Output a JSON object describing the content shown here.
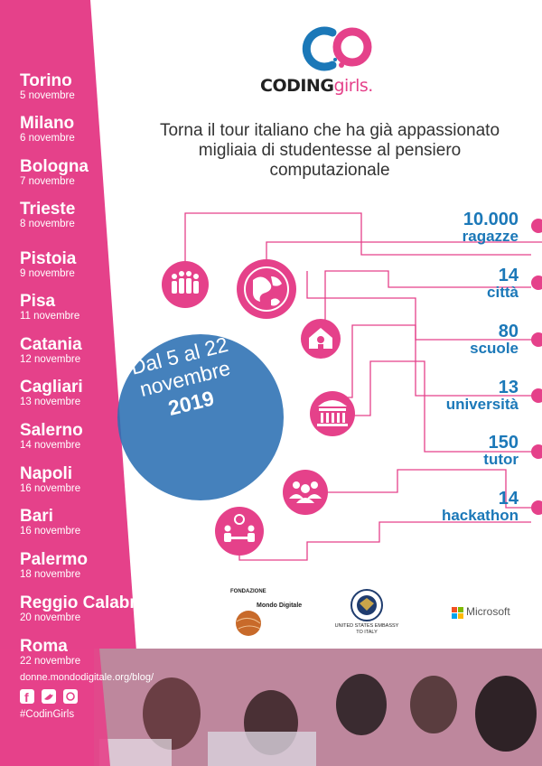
{
  "colors": {
    "pink": "#e5418a",
    "blue": "#1b78b8",
    "photo_pink": "#d46c94"
  },
  "logo": {
    "coding": "CODING",
    "girls": "girls."
  },
  "headline": "Torna il tour italiano che ha già appassionato migliaia di studentesse al pensiero computazionale",
  "cities": [
    {
      "name": "Torino",
      "date": "5 novembre"
    },
    {
      "name": "Milano",
      "date": "6 novembre"
    },
    {
      "name": "Bologna",
      "date": "7 novembre"
    },
    {
      "name": "Trieste",
      "date": "8 novembre"
    },
    {
      "name": "Pistoia",
      "date": "9 novembre"
    },
    {
      "name": "Pisa",
      "date": "11 novembre"
    },
    {
      "name": "Catania",
      "date": "12 novembre"
    },
    {
      "name": "Cagliari",
      "date": "13 novembre"
    },
    {
      "name": "Salerno",
      "date": "14 novembre"
    },
    {
      "name": "Napoli",
      "date": "16 novembre"
    },
    {
      "name": "Bari",
      "date": "16 novembre"
    },
    {
      "name": "Palermo",
      "date": "18 novembre"
    },
    {
      "name": "Reggio Calabria",
      "date": "20 novembre"
    },
    {
      "name": "Roma",
      "date": "22 novembre"
    }
  ],
  "stats": [
    {
      "num": "10.000",
      "label": "ragazze"
    },
    {
      "num": "14",
      "label": "città"
    },
    {
      "num": "80",
      "label": "scuole"
    },
    {
      "num": "13",
      "label": "università"
    },
    {
      "num": "150",
      "label": "tutor"
    },
    {
      "num": "14",
      "label": "hackathon"
    }
  ],
  "date_circle": {
    "line1": "Dal 5 al 22",
    "line2": "novembre",
    "year": "2019"
  },
  "icons": [
    "people-icon",
    "globe-icon",
    "school-icon",
    "university-icon",
    "group-icon",
    "tutor-icon"
  ],
  "sponsors": {
    "fondazione_small": "FONDAZIONE",
    "fondazione": "Mondo Digitale",
    "embassy_line1": "UNITED STATES EMBASSY",
    "embassy_line2": "TO ITALY",
    "microsoft": "Microsoft"
  },
  "footer": {
    "url": "donne.mondodigitale.org/blog/",
    "hashtag": "#CodinGirls"
  }
}
